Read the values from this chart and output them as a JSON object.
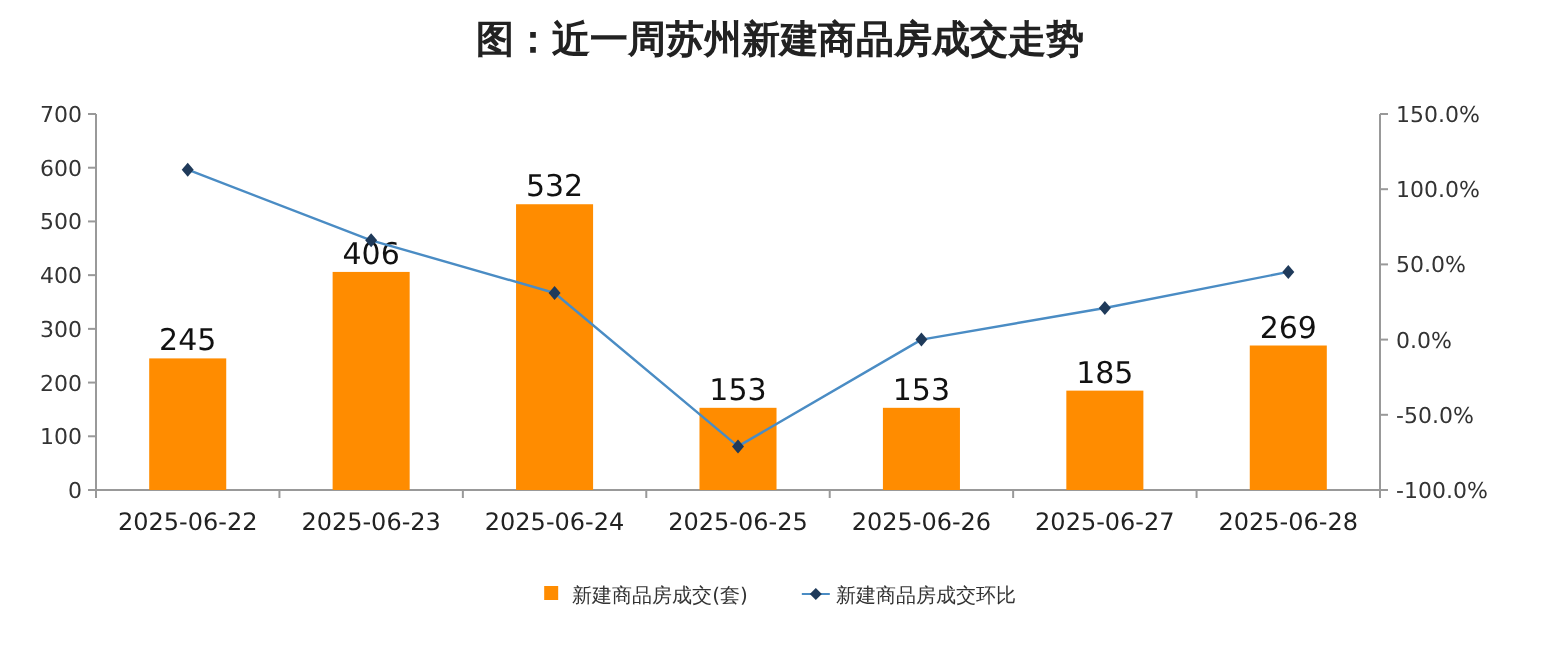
{
  "chart_data": {
    "type": "bar",
    "title": "图：近一周苏州新建商品房成交走势",
    "categories": [
      "2025-06-22",
      "2025-06-23",
      "2025-06-24",
      "2025-06-25",
      "2025-06-26",
      "2025-06-27",
      "2025-06-28"
    ],
    "series": [
      {
        "name": "新建商品房成交(套)",
        "color": "#ff8c00",
        "values": [
          245,
          406,
          532,
          153,
          153,
          185,
          269
        ],
        "value_labels": [
          "245",
          "406",
          "532",
          "153",
          "153",
          "185",
          "269"
        ]
      },
      {
        "name": "新建商品房成交环比",
        "type": "line",
        "axis": "y2",
        "color": "#4a8cc4",
        "marker": "diamond",
        "values": [
          113,
          66,
          31,
          -71,
          0,
          21,
          45
        ]
      }
    ],
    "ylim": [
      0,
      700
    ],
    "yticks": [
      0,
      100,
      200,
      300,
      400,
      500,
      600,
      700
    ],
    "y2lim": [
      -100,
      150
    ],
    "y2ticks": [
      {
        "value": -100,
        "label": "-100.0%"
      },
      {
        "value": -50,
        "label": "-50.0%"
      },
      {
        "value": 0,
        "label": "0.0%"
      },
      {
        "value": 50,
        "label": "50.0%"
      },
      {
        "value": 100,
        "label": "100.0%"
      },
      {
        "value": 150,
        "label": "150.0%"
      }
    ],
    "legend": "bottom"
  }
}
